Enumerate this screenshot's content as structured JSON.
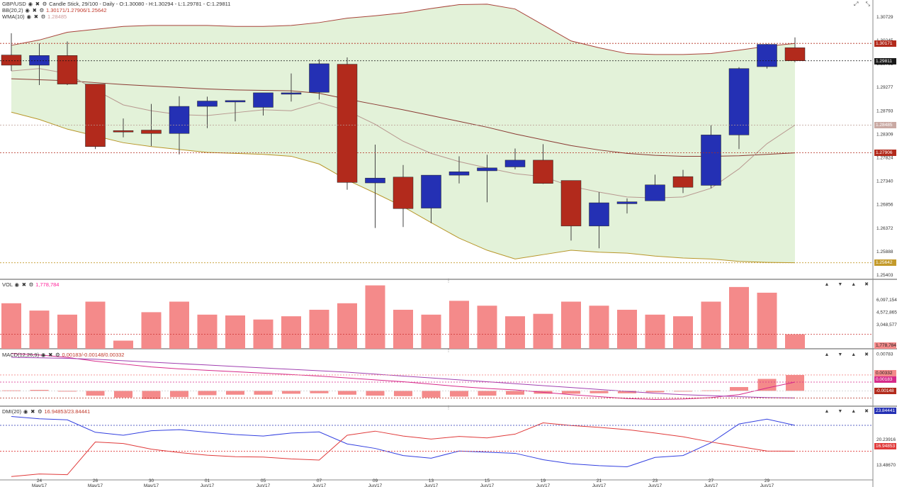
{
  "legend": {
    "main_symbol": "GBP/USD",
    "main_desc": "Candle Stick, 29/100 - Daily - O:1.30080 - H:1.30294 - L:1.29781 - C:1.29811",
    "bb_label": "BB(20,2)",
    "bb_values": "1.30171/1.27906/1.25642",
    "wma_label": "WMA(10)",
    "wma_value": "1.28485",
    "vol_label": "VOL",
    "vol_value": "1,778,784",
    "macd_label": "MACD(12,26,9)",
    "macd_values": "0.00183/-0.00148/0.00332",
    "dmi_label": "DMI(20)",
    "dmi_values": "16.94853/23.84441"
  },
  "axis": {
    "price_ticks": [
      "1.30729",
      "1.30245",
      "1.29761",
      "1.29277",
      "1.28793",
      "1.28309",
      "1.27824",
      "1.27340",
      "1.26856",
      "1.26372",
      "1.25888",
      "1.25403"
    ],
    "vol_ticks": [
      "6,097,154",
      "4,572,865",
      "3,048,577"
    ],
    "macd_ticks": [
      "0.00783",
      "0.00000"
    ],
    "dmi_ticks": [
      "20.23916",
      "13.48670"
    ],
    "date_labels": [
      {
        "day": "24",
        "mon": "May/17",
        "i": 1
      },
      {
        "day": "26",
        "mon": "May/17",
        "i": 3
      },
      {
        "day": "30",
        "mon": "May/17",
        "i": 5
      },
      {
        "day": "01",
        "mon": "Jun/17",
        "i": 7
      },
      {
        "day": "05",
        "mon": "Jun/17",
        "i": 9
      },
      {
        "day": "07",
        "mon": "Jun/17",
        "i": 11
      },
      {
        "day": "09",
        "mon": "Jun/17",
        "i": 13
      },
      {
        "day": "13",
        "mon": "Jun/17",
        "i": 15
      },
      {
        "day": "15",
        "mon": "Jun/17",
        "i": 17
      },
      {
        "day": "19",
        "mon": "Jun/17",
        "i": 19
      },
      {
        "day": "21",
        "mon": "Jun/17",
        "i": 21
      },
      {
        "day": "23",
        "mon": "Jun/17",
        "i": 23
      },
      {
        "day": "27",
        "mon": "Jun/17",
        "i": 25
      },
      {
        "day": "29",
        "mon": "Jun/17",
        "i": 27
      }
    ]
  },
  "badges": {
    "bb_upper": "1.30171",
    "close": "1.29811",
    "wma": "1.28485",
    "bb_mid": "1.27906",
    "bb_lower": "1.25642",
    "vol": "1,778,784",
    "macd_hist": "0.00332",
    "macd_line": "0.00183",
    "macd_signal": "-0.00148",
    "dmi_plus": "23.84441",
    "dmi_minus": "16.94853"
  },
  "colors": {
    "bull": "#2430b4",
    "bear": "#b22a1c",
    "bb_fill": "#e3f2d9",
    "bb_upper": "#a8433a",
    "bb_lower": "#b8962a",
    "bb_mid": "#8a3a33",
    "wma": "#b89890",
    "volume": "#f48a8a",
    "macd_line": "#d62a8a",
    "macd_signal": "#a040b0",
    "dmi_plus": "#3340e0",
    "dmi_minus": "#e03a3a"
  },
  "chart_data": {
    "type": "candlestick",
    "title": "GBP/USD",
    "candles": [
      {
        "o": 1.2993,
        "h": 1.3038,
        "l": 1.296,
        "c": 1.2972
      },
      {
        "o": 1.2972,
        "h": 1.3017,
        "l": 1.2931,
        "c": 1.2992
      },
      {
        "o": 1.2992,
        "h": 1.3021,
        "l": 1.2931,
        "c": 1.2933
      },
      {
        "o": 1.2933,
        "h": 1.2933,
        "l": 1.2799,
        "c": 1.2804
      },
      {
        "o": 1.2837,
        "h": 1.2862,
        "l": 1.2823,
        "c": 1.2835
      },
      {
        "o": 1.2838,
        "h": 1.2892,
        "l": 1.2805,
        "c": 1.2831
      },
      {
        "o": 1.2831,
        "h": 1.2908,
        "l": 1.2788,
        "c": 1.2887
      },
      {
        "o": 1.2887,
        "h": 1.2907,
        "l": 1.2842,
        "c": 1.2898
      },
      {
        "o": 1.2896,
        "h": 1.2896,
        "l": 1.2856,
        "c": 1.2899
      },
      {
        "o": 1.2885,
        "h": 1.2911,
        "l": 1.2868,
        "c": 1.2915
      },
      {
        "o": 1.2915,
        "h": 1.2955,
        "l": 1.2897,
        "c": 1.2915
      },
      {
        "o": 1.2916,
        "h": 1.2984,
        "l": 1.2901,
        "c": 1.2975
      },
      {
        "o": 1.2974,
        "h": 1.2988,
        "l": 1.2715,
        "c": 1.273
      },
      {
        "o": 1.2729,
        "h": 1.2808,
        "l": 1.2636,
        "c": 1.2739
      },
      {
        "o": 1.2741,
        "h": 1.2766,
        "l": 1.2638,
        "c": 1.2676
      },
      {
        "o": 1.2677,
        "h": 1.2745,
        "l": 1.2646,
        "c": 1.2745
      },
      {
        "o": 1.2745,
        "h": 1.2784,
        "l": 1.2728,
        "c": 1.2752
      },
      {
        "o": 1.2754,
        "h": 1.2787,
        "l": 1.2689,
        "c": 1.276
      },
      {
        "o": 1.2762,
        "h": 1.28,
        "l": 1.2757,
        "c": 1.2776
      },
      {
        "o": 1.2776,
        "h": 1.2809,
        "l": 1.2727,
        "c": 1.2728
      },
      {
        "o": 1.2734,
        "h": 1.2734,
        "l": 1.261,
        "c": 1.264
      },
      {
        "o": 1.264,
        "h": 1.271,
        "l": 1.2594,
        "c": 1.2688
      },
      {
        "o": 1.2686,
        "h": 1.2697,
        "l": 1.2666,
        "c": 1.269
      },
      {
        "o": 1.2692,
        "h": 1.2746,
        "l": 1.2692,
        "c": 1.2725
      },
      {
        "o": 1.2742,
        "h": 1.2756,
        "l": 1.2708,
        "c": 1.272
      },
      {
        "o": 1.2724,
        "h": 1.2848,
        "l": 1.2718,
        "c": 1.2828
      },
      {
        "o": 1.2828,
        "h": 1.2968,
        "l": 1.2799,
        "c": 1.2965
      },
      {
        "o": 1.2969,
        "h": 1.3016,
        "l": 1.2965,
        "c": 1.3015
      },
      {
        "o": 1.3008,
        "h": 1.30294,
        "l": 1.29781,
        "c": 1.29811
      }
    ],
    "bb_upper": [
      1.3013,
      1.3024,
      1.304,
      1.3046,
      1.3052,
      1.3054,
      1.3054,
      1.3054,
      1.3052,
      1.3052,
      1.3054,
      1.306,
      1.3069,
      1.3074,
      1.308,
      1.3089,
      1.3097,
      1.3098,
      1.3088,
      1.3055,
      1.3022,
      1.3008,
      1.2996,
      1.2994,
      1.2994,
      1.2996,
      1.3003,
      1.3011,
      1.3017
    ],
    "bb_mid": [
      1.2944,
      1.2942,
      1.294,
      1.2936,
      1.2932,
      1.2929,
      1.2926,
      1.2923,
      1.2921,
      1.292,
      1.2919,
      1.2914,
      1.2902,
      1.2891,
      1.288,
      1.2868,
      1.2856,
      1.2844,
      1.283,
      1.2818,
      1.2806,
      1.2797,
      1.279,
      1.2786,
      1.2784,
      1.2784,
      1.2785,
      1.2788,
      1.2791
    ],
    "bb_lower": [
      1.2875,
      1.286,
      1.284,
      1.2826,
      1.2812,
      1.2804,
      1.2798,
      1.2792,
      1.279,
      1.2788,
      1.2784,
      1.2768,
      1.2735,
      1.2708,
      1.268,
      1.2647,
      1.2615,
      1.259,
      1.2572,
      1.2581,
      1.259,
      1.2586,
      1.2584,
      1.2578,
      1.2574,
      1.2572,
      1.2567,
      1.2565,
      1.25642
    ],
    "wma": [
      1.296,
      1.2965,
      1.2955,
      1.2921,
      1.289,
      1.2878,
      1.287,
      1.2868,
      1.2874,
      1.288,
      1.2878,
      1.2895,
      1.2878,
      1.285,
      1.2815,
      1.279,
      1.2773,
      1.276,
      1.2748,
      1.2742,
      1.2722,
      1.271,
      1.27,
      1.2698,
      1.27,
      1.2718,
      1.2758,
      1.281,
      1.28485
    ],
    "volume": [
      5600000,
      4700000,
      4200000,
      5800000,
      1000000,
      4500000,
      5800000,
      4200000,
      4100000,
      3600000,
      4000000,
      4800000,
      5600000,
      7800000,
      4800000,
      4200000,
      5900000,
      5300000,
      4000000,
      4300000,
      5800000,
      5300000,
      4800000,
      4200000,
      4000000,
      5800000,
      7600000,
      6900000,
      1778784
    ],
    "macd_hist": [
      0.0001,
      0.0002,
      0.0,
      -0.001,
      -0.0014,
      -0.0017,
      -0.0013,
      -0.0009,
      -0.0008,
      -0.0008,
      -0.0006,
      -0.0005,
      -0.0008,
      -0.001,
      -0.0011,
      -0.0014,
      -0.0012,
      -0.001,
      -0.0008,
      -0.0006,
      -0.0006,
      -0.0005,
      -0.0005,
      -0.0003,
      -0.0001,
      0.0001,
      0.0008,
      0.0025,
      0.00332
    ],
    "macd_line": [
      0.0078,
      0.0075,
      0.007,
      0.0062,
      0.0056,
      0.005,
      0.0046,
      0.0043,
      0.004,
      0.0037,
      0.0034,
      0.0031,
      0.0027,
      0.0023,
      0.0019,
      0.0014,
      0.0009,
      0.0005,
      0.0002,
      -0.0003,
      -0.0008,
      -0.0012,
      -0.0016,
      -0.0018,
      -0.0017,
      -0.0014,
      -0.0008,
      0.0006,
      0.00183
    ],
    "macd_signal": [
      0.007,
      0.0069,
      0.0068,
      0.0066,
      0.0063,
      0.006,
      0.0057,
      0.0054,
      0.0051,
      0.0048,
      0.0045,
      0.0042,
      0.0039,
      0.0035,
      0.0031,
      0.0027,
      0.0023,
      0.0019,
      0.0015,
      0.0011,
      0.0007,
      0.0003,
      -0.0001,
      -0.0005,
      -0.0008,
      -0.001,
      -0.0012,
      -0.0014,
      -0.00148
    ],
    "dmi_plus": [
      26.2,
      25.6,
      25.3,
      22.0,
      21.2,
      22.4,
      22.7,
      22.0,
      21.4,
      21.0,
      21.8,
      22.1,
      18.9,
      17.7,
      15.8,
      15.1,
      17.0,
      16.7,
      16.4,
      14.7,
      13.6,
      13.1,
      12.8,
      15.3,
      15.8,
      19.2,
      24.2,
      25.5,
      23.84441
    ],
    "dmi_minus": [
      10.2,
      10.9,
      10.7,
      19.4,
      19.0,
      17.5,
      16.6,
      15.9,
      15.5,
      15.4,
      14.9,
      14.6,
      21.2,
      22.3,
      21.0,
      20.2,
      20.9,
      20.5,
      21.5,
      24.5,
      23.8,
      23.3,
      22.7,
      21.8,
      20.8,
      19.4,
      18.2,
      17.0,
      16.94853
    ],
    "price_range": [
      1.25403,
      1.30729
    ]
  }
}
